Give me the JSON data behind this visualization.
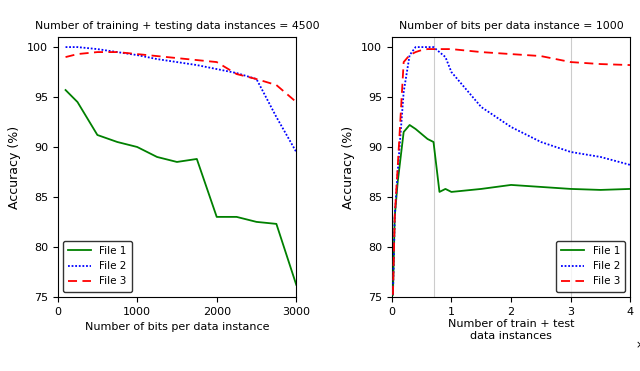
{
  "left": {
    "title": "Number of training + testing data instances = 4500",
    "xlabel": "Number of bits per data instance",
    "ylabel": "Accuracy (%)",
    "xlim": [
      0,
      3000
    ],
    "ylim": [
      75,
      101
    ],
    "yticks": [
      75,
      80,
      85,
      90,
      95,
      100
    ],
    "xticks": [
      0,
      1000,
      2000,
      3000
    ],
    "file1_x": [
      100,
      250,
      500,
      750,
      1000,
      1250,
      1500,
      1750,
      2000,
      2250,
      2500,
      2750,
      3000
    ],
    "file1_y": [
      95.7,
      94.5,
      91.2,
      90.5,
      90.0,
      89.0,
      88.5,
      88.8,
      83.0,
      83.0,
      82.5,
      82.3,
      76.2
    ],
    "file2_x": [
      100,
      250,
      500,
      750,
      1000,
      1250,
      1500,
      1750,
      2000,
      2250,
      2500,
      2750,
      3000
    ],
    "file2_y": [
      100.0,
      100.0,
      99.8,
      99.5,
      99.2,
      98.8,
      98.5,
      98.2,
      97.8,
      97.4,
      96.8,
      93.0,
      89.5
    ],
    "file3_x": [
      100,
      250,
      500,
      750,
      1000,
      1250,
      1500,
      1750,
      2000,
      2250,
      2500,
      2750,
      3000
    ],
    "file3_y": [
      99.0,
      99.3,
      99.5,
      99.5,
      99.3,
      99.1,
      98.9,
      98.7,
      98.5,
      97.3,
      96.8,
      96.2,
      94.5
    ]
  },
  "right": {
    "title": "Number of bits per data instance = 1000",
    "xlabel_line1": "Number of train + test",
    "xlabel_line2": "data instances",
    "ylabel": "Accuracy (%)",
    "xlim": [
      0,
      40000
    ],
    "ylim": [
      75,
      101
    ],
    "yticks": [
      75,
      80,
      85,
      90,
      95,
      100
    ],
    "xticks": [
      0,
      10000,
      20000,
      30000,
      40000
    ],
    "xticklabels": [
      "0",
      "1",
      "2",
      "3",
      "4"
    ],
    "file1_x": [
      200,
      500,
      1000,
      2000,
      3000,
      4000,
      5000,
      6000,
      7000,
      8000,
      9000,
      10000,
      15000,
      20000,
      25000,
      30000,
      35000,
      40000
    ],
    "file1_y": [
      75.2,
      83.0,
      86.5,
      91.5,
      92.2,
      91.8,
      91.3,
      90.8,
      90.5,
      85.5,
      85.8,
      85.5,
      85.8,
      86.2,
      86.0,
      85.8,
      85.7,
      85.8
    ],
    "file2_x": [
      200,
      500,
      1000,
      2000,
      3000,
      4000,
      5000,
      6000,
      7000,
      8000,
      9000,
      10000,
      15000,
      20000,
      25000,
      30000,
      35000,
      40000
    ],
    "file2_y": [
      75.2,
      83.0,
      87.5,
      95.5,
      99.2,
      100.0,
      100.0,
      100.0,
      100.0,
      99.5,
      99.0,
      97.5,
      94.0,
      92.0,
      90.5,
      89.5,
      89.0,
      88.2
    ],
    "file3_x": [
      200,
      500,
      1000,
      2000,
      3000,
      4000,
      5000,
      6000,
      7000,
      8000,
      10000,
      15000,
      20000,
      25000,
      30000,
      35000,
      40000
    ],
    "file3_y": [
      75.2,
      83.0,
      88.0,
      98.5,
      99.2,
      99.5,
      99.7,
      99.8,
      99.8,
      99.8,
      99.8,
      99.5,
      99.3,
      99.1,
      98.5,
      98.3,
      98.2
    ],
    "vlines": [
      7000,
      30000
    ]
  },
  "colors": {
    "file1": "#008000",
    "file2": "#0000FF",
    "file3": "#FF0000"
  },
  "legend_labels": [
    "File 1",
    "File 2",
    "File 3"
  ],
  "fig_width": 6.4,
  "fig_height": 3.71,
  "dpi": 100
}
